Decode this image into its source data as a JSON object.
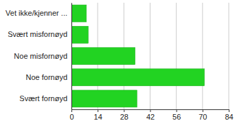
{
  "chart_data": {
    "type": "bar",
    "orientation": "horizontal",
    "categories": [
      "Vet ikke/kjenner ...",
      "Svært misfornøyd",
      "Noe misfornøyd",
      "Noe fornøyd",
      "Svært fornøyd"
    ],
    "values": [
      8,
      9,
      34,
      71,
      35
    ],
    "color": "#22d322",
    "xlim": [
      0,
      84
    ],
    "xticks": [
      0,
      14,
      28,
      42,
      56,
      70,
      84
    ],
    "grid": true
  }
}
